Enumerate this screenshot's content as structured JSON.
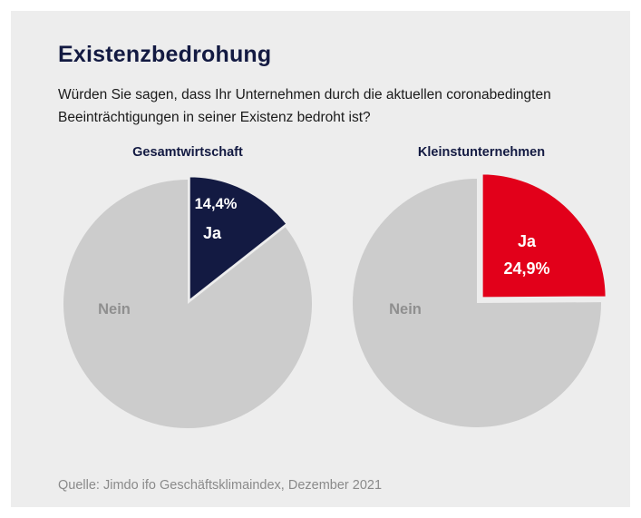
{
  "title": "Existenzbedrohung",
  "question": "Würden Sie sagen, dass Ihr Unternehmen durch die aktuellen coronabedingten Beeinträchtigungen in seiner Existenz bedroht ist?",
  "source": "Quelle: Jimdo ifo Geschäftsklimaindex, Dezember 2021",
  "colors": {
    "background": "#ededed",
    "nein": "#cccccc",
    "ja_total": "#131a42",
    "ja_small": "#e2001a",
    "title": "#131a42"
  },
  "chart_data": [
    {
      "type": "pie",
      "title": "Gesamtwirtschaft",
      "slices": [
        {
          "label": "Ja",
          "value": 14.4,
          "value_label": "14,4%",
          "color": "#131a42",
          "exploded": true
        },
        {
          "label": "Nein",
          "value": 85.6,
          "color": "#cccccc"
        }
      ]
    },
    {
      "type": "pie",
      "title": "Kleinstunternehmen",
      "slices": [
        {
          "label": "Ja",
          "value": 24.9,
          "value_label": "24,9%",
          "color": "#e2001a",
          "exploded": true
        },
        {
          "label": "Nein",
          "value": 75.1,
          "color": "#cccccc"
        }
      ]
    }
  ]
}
